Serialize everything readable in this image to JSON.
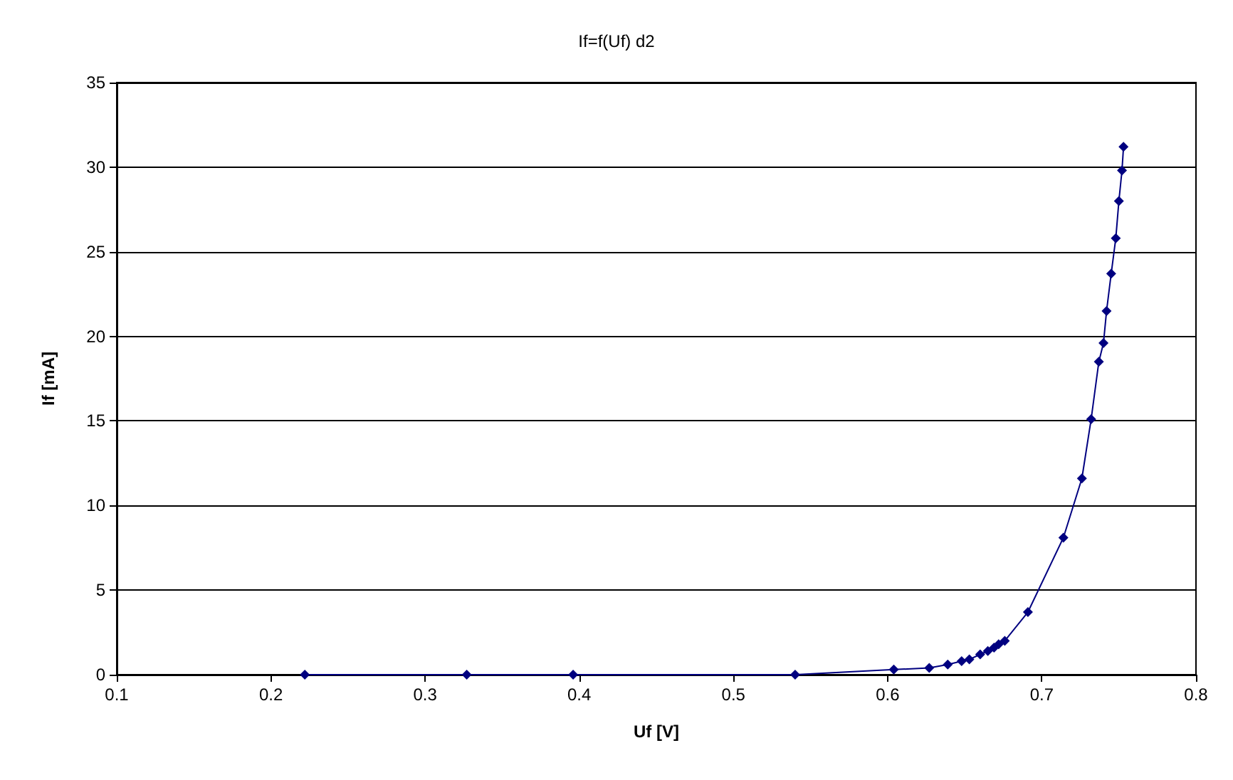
{
  "chart_data": {
    "type": "line",
    "title": "If=f(Uf) d2",
    "xlabel": "Uf [V]",
    "ylabel": "If [mA]",
    "x": [
      0.222,
      0.327,
      0.396,
      0.54,
      0.604,
      0.627,
      0.639,
      0.648,
      0.653,
      0.66,
      0.665,
      0.669,
      0.672,
      0.676,
      0.691,
      0.714,
      0.726,
      0.732,
      0.737,
      0.74,
      0.742,
      0.745,
      0.748,
      0.75,
      0.752,
      0.753
    ],
    "series": [
      {
        "color": "#000080",
        "values": [
          0,
          0,
          0,
          0,
          0.3,
          0.4,
          0.6,
          0.8,
          0.9,
          1.2,
          1.4,
          1.6,
          1.8,
          2.0,
          3.7,
          8.1,
          11.6,
          15.1,
          18.5,
          19.6,
          21.5,
          23.7,
          25.8,
          28.0,
          29.8,
          31.2
        ]
      }
    ],
    "xlim": [
      0.1,
      0.8
    ],
    "xticks": [
      0.1,
      0.2,
      0.3,
      0.4,
      0.5,
      0.6,
      0.7,
      0.8
    ],
    "ylim": [
      0,
      35
    ],
    "yticks": [
      0,
      5,
      10,
      15,
      20,
      25,
      30,
      35
    ],
    "grid": "y",
    "marker": "diamond",
    "line_style": "solid"
  }
}
